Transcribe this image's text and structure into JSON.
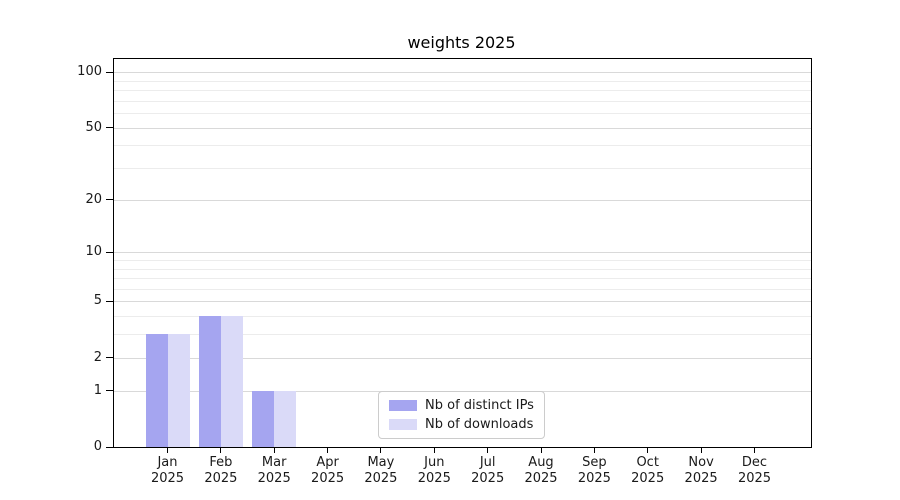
{
  "title": "weights 2025",
  "chart_data": {
    "type": "bar",
    "title": "weights 2025",
    "categories": [
      "Jan 2025",
      "Feb 2025",
      "Mar 2025",
      "Apr 2025",
      "May 2025",
      "Jun 2025",
      "Jul 2025",
      "Aug 2025",
      "Sep 2025",
      "Oct 2025",
      "Nov 2025",
      "Dec 2025"
    ],
    "series": [
      {
        "name": "Nb of distinct IPs",
        "color": "#a5a5f0",
        "values": [
          3,
          4,
          1,
          0,
          0,
          0,
          0,
          0,
          0,
          0,
          0,
          0
        ]
      },
      {
        "name": "Nb of downloads",
        "color": "#dadaf8",
        "values": [
          3,
          4,
          1,
          0,
          0,
          0,
          0,
          0,
          0,
          0,
          0,
          0
        ]
      }
    ],
    "xlabel": "",
    "ylabel": "",
    "yscale": "log1p",
    "ylim": [
      0,
      100
    ],
    "yticks": [
      0,
      1,
      2,
      5,
      10,
      20,
      50,
      100
    ],
    "yticks_minor": [
      3,
      4,
      6,
      7,
      8,
      9,
      30,
      40,
      60,
      70,
      80,
      90
    ],
    "grid": true,
    "legend_position": "lower center",
    "colors": {
      "grid_major": "#d9d9d9",
      "grid_minor": "#ececec",
      "spine": "#000000",
      "text": "#1a1a1a",
      "legend_border": "#cccccc",
      "background": "#ffffff"
    }
  }
}
